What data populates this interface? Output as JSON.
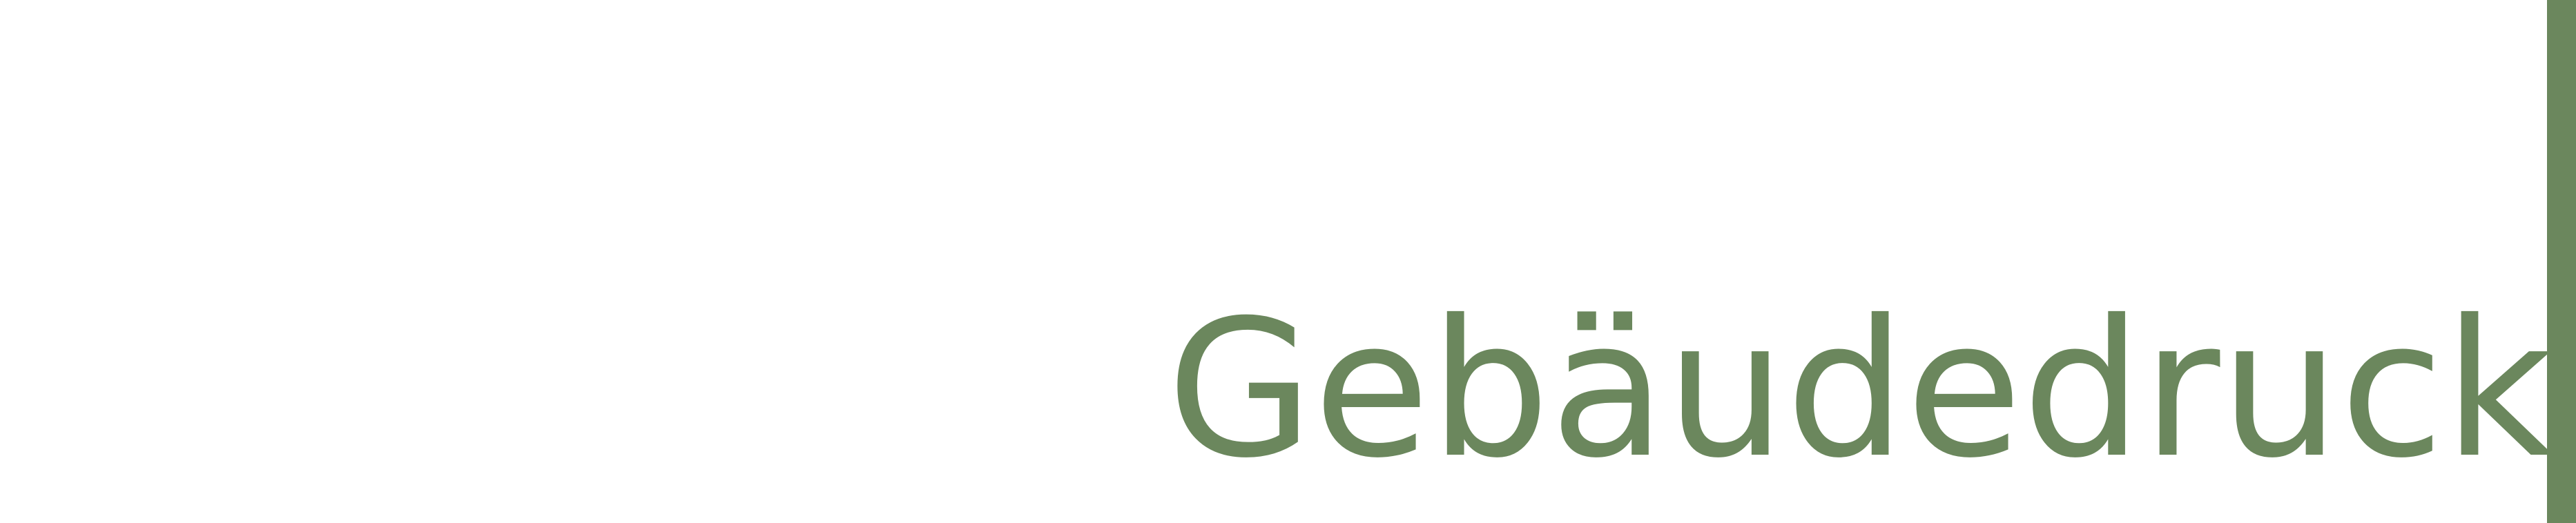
{
  "header": {
    "title": "Gebäudedruck"
  },
  "colors": {
    "accent": "#6b875d",
    "background": "#ffffff"
  }
}
